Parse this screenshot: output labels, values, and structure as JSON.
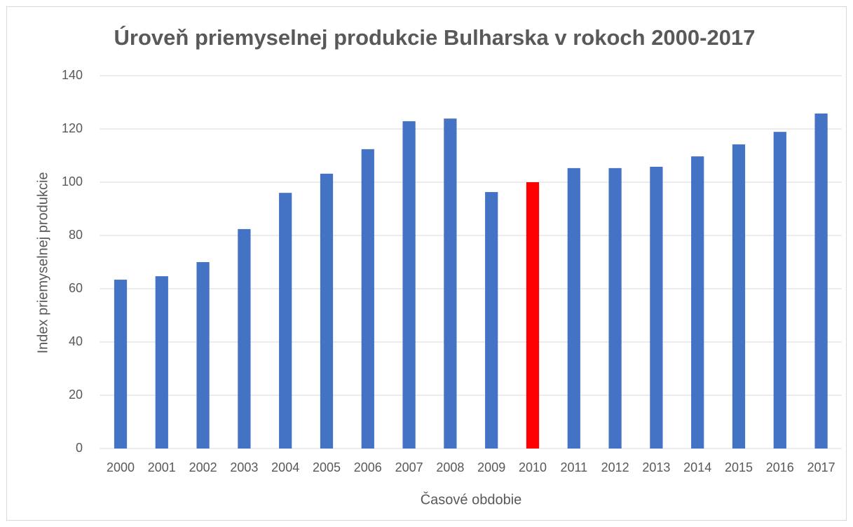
{
  "chart_data": {
    "type": "bar",
    "title": "Úroveň priemyselnej produkcie Bulharska v rokoch 2000-2017",
    "x_label": "Časové obdobie",
    "y_label": "Index priemyselnej produkcie",
    "categories": [
      "2000",
      "2001",
      "2002",
      "2003",
      "2004",
      "2005",
      "2006",
      "2007",
      "2008",
      "2009",
      "2010",
      "2011",
      "2012",
      "2013",
      "2014",
      "2015",
      "2016",
      "2017"
    ],
    "values": [
      63.4,
      64.7,
      70,
      82.4,
      96,
      103.2,
      112.4,
      122.9,
      123.9,
      96.3,
      100,
      105.3,
      105.3,
      105.8,
      109.7,
      114.2,
      118.9,
      125.8
    ],
    "colors": [
      "#4472c4",
      "#4472c4",
      "#4472c4",
      "#4472c4",
      "#4472c4",
      "#4472c4",
      "#4472c4",
      "#4472c4",
      "#4472c4",
      "#4472c4",
      "#ff0000",
      "#4472c4",
      "#4472c4",
      "#4472c4",
      "#4472c4",
      "#4472c4",
      "#4472c4",
      "#4472c4"
    ],
    "ylim": [
      0,
      140
    ],
    "yticks": [
      0,
      20,
      40,
      60,
      80,
      100,
      120,
      140
    ],
    "grid": true
  }
}
